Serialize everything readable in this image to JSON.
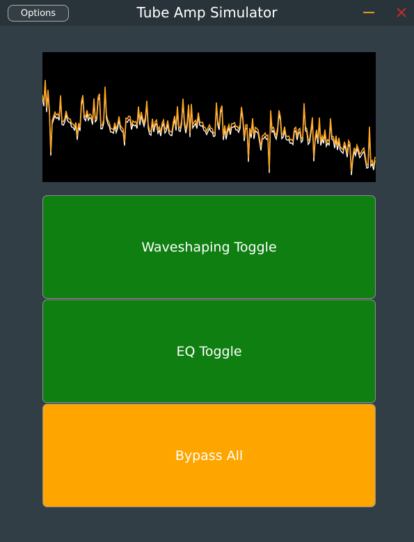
{
  "window": {
    "title": "Tube Amp Simulator",
    "options_label": "Options",
    "minimize_color": "#d9951f",
    "close_color": "#c22b2b"
  },
  "spectrum": {
    "background": "#000000",
    "series": [
      {
        "color": "#ffffff"
      },
      {
        "color": "#ffa51e"
      }
    ]
  },
  "buttons": {
    "waveshaping_label": "Waveshaping Toggle",
    "eq_label": "EQ Toggle",
    "bypass_label": "Bypass All",
    "active_color": "#0e7f10",
    "bypass_color": "#ffa500"
  }
}
